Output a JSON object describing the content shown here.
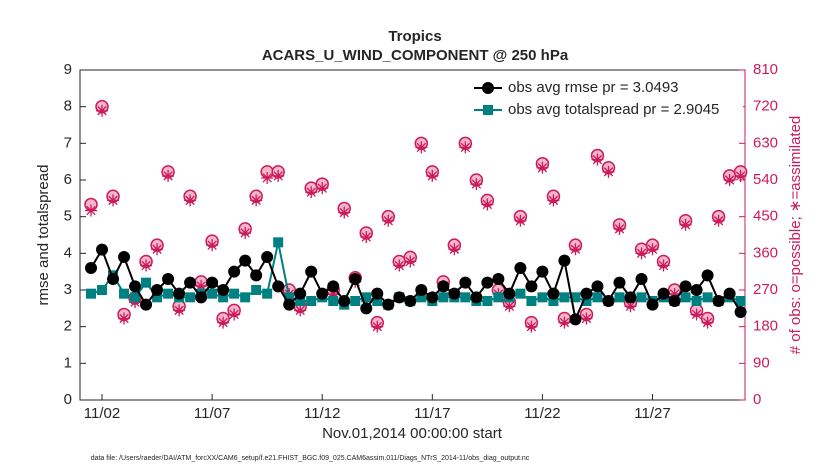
{
  "chart_data": {
    "type": "line",
    "title": "Tropics",
    "subtitle": "ACARS_U_WIND_COMPONENT @ 250 hPa",
    "xlabel": "Nov.01,2014 00:00:00 start",
    "ylabel": "rmse and totalspread",
    "y2label": "# of obs: o=possible; ∗=assimilated",
    "footer": "data file: /Users/raeder/DAI/ATM_forcXX/CAM6_setup/f.e21.FHIST_BGC.f09_025.CAM6assim.011/Diags_NTrS_2014-11/obs_diag_output.nc",
    "legend": "northeast",
    "grid": false,
    "xlim": [
      0,
      30.2
    ],
    "xticks": [
      {
        "value": 1,
        "label": "11/02"
      },
      {
        "value": 6,
        "label": "11/07"
      },
      {
        "value": 11,
        "label": "11/12"
      },
      {
        "value": 16,
        "label": "11/17"
      },
      {
        "value": 21,
        "label": "11/22"
      },
      {
        "value": 26,
        "label": "11/27"
      }
    ],
    "ylim": [
      0,
      9
    ],
    "yticks": [
      0,
      1,
      2,
      3,
      4,
      5,
      6,
      7,
      8,
      9
    ],
    "y2lim": [
      0,
      810
    ],
    "y2ticks": [
      0,
      90,
      180,
      270,
      360,
      450,
      540,
      630,
      720,
      810
    ],
    "x": [
      0.5,
      1,
      1.5,
      2,
      2.5,
      3,
      3.5,
      4,
      4.5,
      5,
      5.5,
      6,
      6.5,
      7,
      7.5,
      8,
      8.5,
      9,
      9.5,
      10,
      10.5,
      11,
      11.5,
      12,
      12.5,
      13,
      13.5,
      14,
      14.5,
      15,
      15.5,
      16,
      16.5,
      17,
      17.5,
      18,
      18.5,
      19,
      19.5,
      20,
      20.5,
      21,
      21.5,
      22,
      22.5,
      23,
      23.5,
      24,
      24.5,
      25,
      25.5,
      26,
      26.5,
      27,
      27.5,
      28,
      28.5,
      29,
      29.5,
      30
    ],
    "series": [
      {
        "name": "obs avg rmse pr = 3.0493",
        "color": "#000000",
        "marker": "circle",
        "values": [
          3.6,
          4.1,
          3.3,
          3.9,
          3.1,
          2.6,
          3.0,
          3.3,
          2.9,
          3.2,
          2.8,
          3.2,
          3.0,
          3.5,
          3.8,
          3.4,
          3.9,
          3.1,
          2.6,
          2.9,
          3.5,
          2.9,
          3.1,
          2.7,
          3.3,
          2.5,
          2.9,
          2.6,
          2.8,
          2.7,
          3.0,
          2.8,
          3.1,
          2.9,
          3.2,
          2.8,
          3.2,
          3.3,
          2.9,
          3.6,
          3.1,
          3.5,
          2.9,
          3.8,
          2.2,
          2.9,
          3.1,
          2.7,
          3.2,
          2.8,
          3.3,
          2.6,
          2.9,
          2.7,
          3.1,
          3.0,
          3.4,
          2.7,
          2.9,
          2.4
        ]
      },
      {
        "name": "obs avg totalspread pr = 2.9045",
        "color": "#008080",
        "marker": "square",
        "values": [
          2.9,
          3.0,
          3.4,
          2.9,
          2.8,
          3.2,
          2.8,
          2.9,
          2.8,
          2.8,
          2.9,
          2.9,
          2.8,
          2.9,
          2.8,
          3.0,
          2.9,
          4.3,
          2.8,
          2.7,
          2.7,
          2.8,
          2.7,
          2.6,
          2.7,
          2.8,
          2.7,
          2.6,
          2.8,
          2.7,
          2.8,
          2.7,
          2.8,
          2.8,
          2.8,
          2.7,
          2.7,
          2.8,
          2.8,
          2.9,
          2.7,
          2.8,
          2.7,
          2.8,
          2.8,
          2.7,
          2.8,
          2.7,
          2.8,
          2.8,
          2.8,
          2.7,
          2.8,
          2.7,
          2.8,
          2.7,
          2.8,
          2.7,
          2.8,
          2.7
        ]
      },
      {
        "color": "#cc1b5c",
        "marker": "o",
        "axis": "y2",
        "values": [
          480,
          720,
          500,
          210,
          250,
          340,
          380,
          560,
          230,
          500,
          290,
          390,
          200,
          220,
          420,
          500,
          560,
          560,
          270,
          230,
          520,
          530,
          270,
          470,
          300,
          410,
          190,
          450,
          340,
          350,
          630,
          560,
          290,
          380,
          630,
          540,
          490,
          270,
          240,
          450,
          190,
          580,
          500,
          200,
          380,
          210,
          600,
          570,
          430,
          240,
          370,
          380,
          340,
          270,
          440,
          220,
          200,
          450,
          550,
          560
        ]
      },
      {
        "color": "#cc1b5c",
        "marker": "star",
        "axis": "y2",
        "values": [
          465,
          710,
          490,
          200,
          240,
          330,
          370,
          550,
          220,
          490,
          280,
          380,
          190,
          210,
          410,
          490,
          545,
          550,
          260,
          220,
          510,
          520,
          260,
          460,
          290,
          400,
          180,
          440,
          330,
          340,
          620,
          550,
          280,
          370,
          620,
          530,
          480,
          260,
          230,
          440,
          180,
          570,
          490,
          190,
          370,
          200,
          590,
          560,
          420,
          230,
          360,
          370,
          330,
          260,
          430,
          210,
          190,
          440,
          540,
          550
        ]
      }
    ]
  }
}
